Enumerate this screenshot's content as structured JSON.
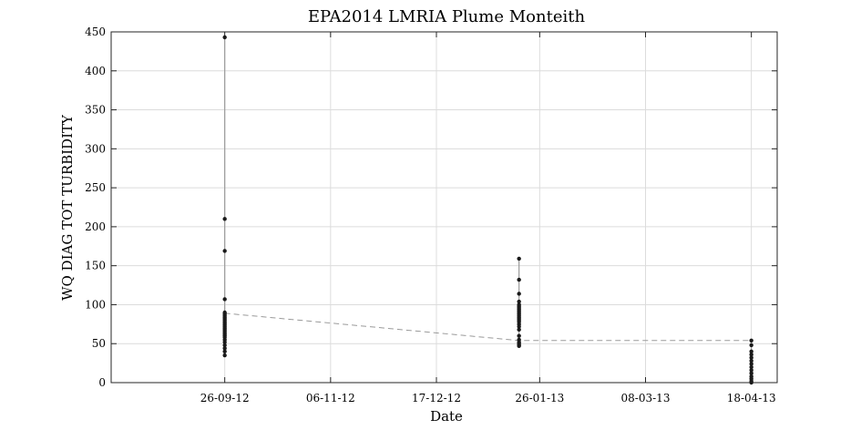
{
  "chart_data": {
    "type": "scatter",
    "title": "EPA2014 LMRIA Plume Monteith",
    "xlabel": "Date",
    "ylabel": "WQ DIAG TOT TURBIDITY",
    "xlim": [
      "2012-08-13",
      "2013-04-28"
    ],
    "ylim": [
      0,
      450
    ],
    "grid": true,
    "x_ticks": [
      {
        "date": "2012-09-26",
        "label": "26-09-12"
      },
      {
        "date": "2012-11-06",
        "label": "06-11-12"
      },
      {
        "date": "2012-12-17",
        "label": "17-12-12"
      },
      {
        "date": "2013-01-26",
        "label": "26-01-13"
      },
      {
        "date": "2013-03-08",
        "label": "08-03-13"
      },
      {
        "date": "2013-04-18",
        "label": "18-04-13"
      }
    ],
    "y_ticks": [
      0,
      50,
      100,
      150,
      200,
      250,
      300,
      350,
      400,
      450
    ],
    "series": [
      {
        "style": "profile-points",
        "color": "#1a1a1a",
        "line_color": "#9a9a9a",
        "groups": [
          {
            "date": "2012-09-26",
            "values": [
              443,
              210,
              169,
              107,
              90,
              88,
              86,
              84,
              82,
              80,
              78,
              76,
              74,
              72,
              70,
              68,
              66,
              64,
              62,
              60,
              58,
              55,
              52,
              48,
              44,
              40,
              35
            ]
          },
          {
            "date": "2013-01-18",
            "values": [
              159,
              132,
              114,
              104,
              100,
              98,
              96,
              94,
              92,
              90,
              88,
              86,
              84,
              82,
              80,
              78,
              75,
              72,
              68,
              60,
              55,
              52,
              50,
              48,
              47
            ]
          },
          {
            "date": "2013-04-18",
            "values": [
              54,
              48,
              40,
              36,
              32,
              28,
              24,
              20,
              16,
              12,
              8,
              5,
              2,
              0
            ]
          }
        ]
      },
      {
        "style": "dashed",
        "color": "#9a9a9a",
        "x": [
          "2012-09-26",
          "2013-01-18",
          "2013-04-18"
        ],
        "y": [
          89,
          54,
          54
        ]
      }
    ]
  }
}
